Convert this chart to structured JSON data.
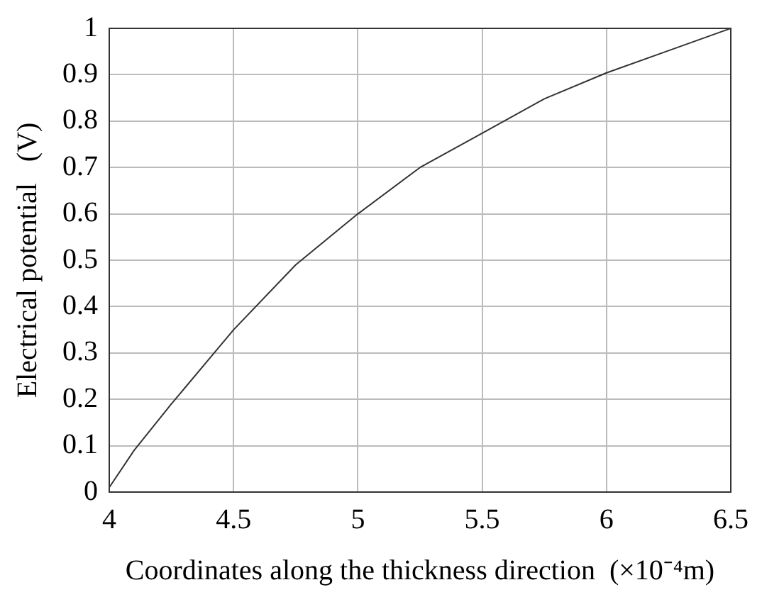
{
  "chart_data": {
    "type": "line",
    "xlabel": "Coordinates along the thickness direction  (×10⁻⁴m)",
    "ylabel": "Electrical potential   (V)",
    "x": [
      4,
      4.1,
      4.25,
      4.5,
      4.75,
      5,
      5.25,
      5.5,
      5.75,
      6,
      6.25,
      6.5
    ],
    "series": [
      {
        "color": "#333333",
        "values": [
          0.01,
          0.09,
          0.19,
          0.35,
          0.49,
          0.6,
          0.7,
          0.774,
          0.848,
          0.904,
          0.952,
          1.0
        ]
      }
    ],
    "xlim": [
      4,
      6.5
    ],
    "xticks": [
      4,
      4.5,
      5,
      5.5,
      6,
      6.5
    ],
    "ylim": [
      0,
      1
    ],
    "yticks": [
      0,
      0.1,
      0.2,
      0.3,
      0.4,
      0.5,
      0.6,
      0.7,
      0.8,
      0.9,
      1
    ],
    "grid": true,
    "legend": false,
    "marker": "none",
    "line_style": "solid"
  }
}
